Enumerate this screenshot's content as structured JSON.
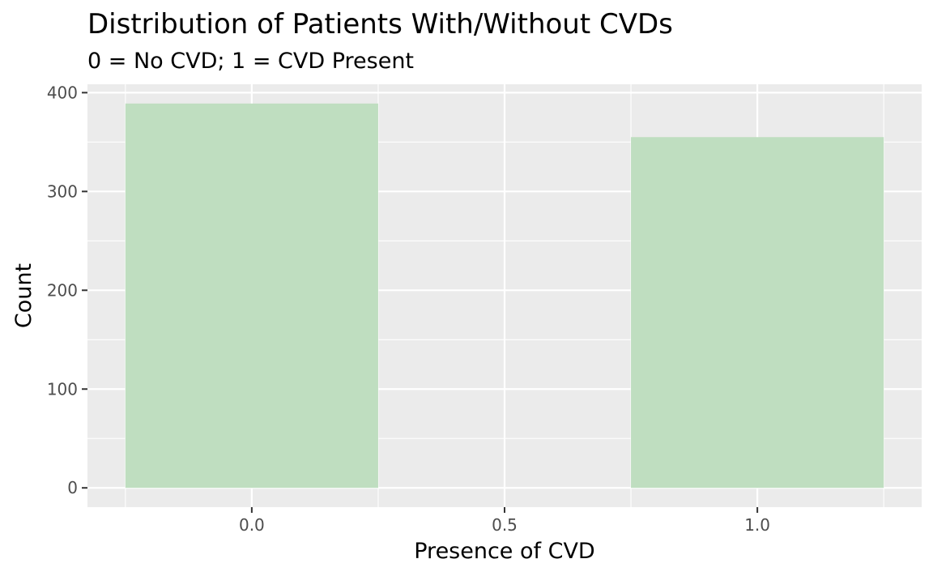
{
  "chart_data": {
    "type": "bar",
    "title": "Distribution of Patients With/Without CVDs",
    "subtitle": "0 = No CVD; 1 = CVD Present",
    "xlabel": "Presence of CVD",
    "ylabel": "Count",
    "x": [
      0,
      1
    ],
    "values": [
      389,
      355
    ],
    "bar_width": 0.5,
    "xlim": [
      -0.325,
      1.325
    ],
    "ylim": [
      -19.5,
      408.5
    ],
    "x_ticks": [
      0.0,
      0.5,
      1.0
    ],
    "x_tick_labels": [
      "0.0",
      "0.5",
      "1.0"
    ],
    "x_minor_ticks": [
      -0.25,
      0.25,
      0.75,
      1.25
    ],
    "y_ticks": [
      0,
      100,
      200,
      300,
      400
    ],
    "y_tick_labels": [
      "0",
      "100",
      "200",
      "300",
      "400"
    ],
    "y_minor_ticks": [
      50,
      150,
      250,
      350
    ],
    "grid": true,
    "legend": "none",
    "colors": {
      "bar_fill": "#bfdec0",
      "panel_background": "#ebebeb",
      "grid_line": "#ffffff",
      "tick_mark": "#333333"
    }
  }
}
